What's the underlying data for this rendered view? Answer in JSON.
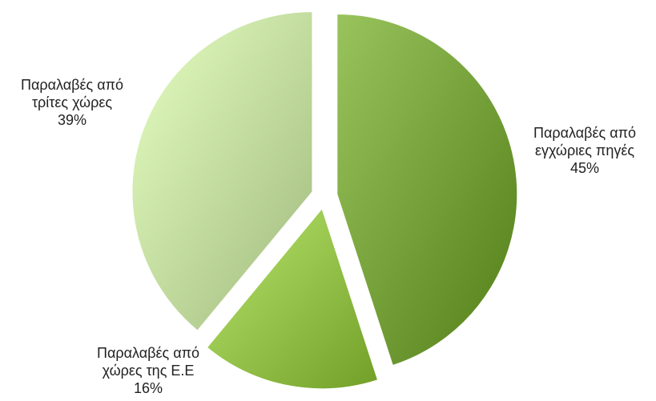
{
  "chart_data": {
    "type": "pie",
    "style": "exploded-3d",
    "slices": [
      {
        "label_lines": [
          "Παραλαβές από",
          "εγχώριες πηγές"
        ],
        "percent_label": "45%",
        "value": 45,
        "color": "#76a13a"
      },
      {
        "label_lines": [
          "Παραλαβές από",
          "χώρες της Ε.Ε"
        ],
        "percent_label": "16%",
        "value": 16,
        "color": "#95c24a"
      },
      {
        "label_lines": [
          "Παραλαβές από",
          "τρίτες χώρες"
        ],
        "percent_label": "39%",
        "value": 39,
        "color": "#c3dca0"
      }
    ]
  }
}
